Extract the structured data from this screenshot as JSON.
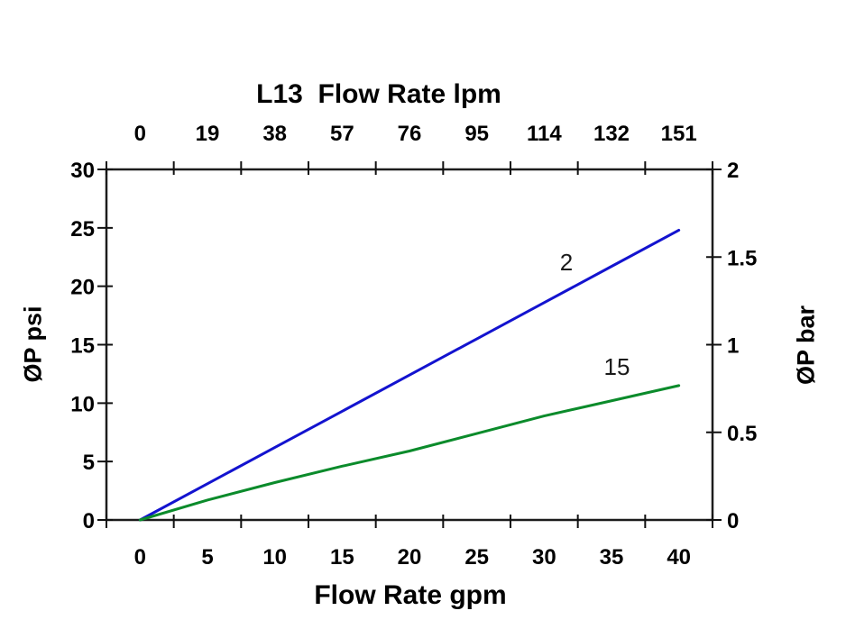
{
  "chart_data": {
    "type": "line",
    "top_axis": {
      "title": "L13  Flow Rate lpm",
      "tick_labels": [
        "0",
        "19",
        "38",
        "57",
        "76",
        "95",
        "114",
        "132",
        "151"
      ]
    },
    "bottom_axis": {
      "title": "Flow Rate gpm",
      "tick_labels": [
        "0",
        "5",
        "10",
        "15",
        "20",
        "25",
        "30",
        "35",
        "40"
      ],
      "values_gpm": [
        0,
        5,
        10,
        15,
        20,
        25,
        30,
        35,
        40
      ]
    },
    "left_axis": {
      "title": "ØP psi",
      "tick_labels": [
        "0",
        "5",
        "10",
        "15",
        "20",
        "25",
        "30"
      ],
      "tick_values": [
        0,
        5,
        10,
        15,
        20,
        25,
        30
      ],
      "range": [
        0,
        30
      ]
    },
    "right_axis": {
      "title": "ØP bar",
      "tick_labels": [
        "0",
        "0.5",
        "1",
        "1.5",
        "2"
      ],
      "tick_values": [
        0,
        0.5,
        1,
        1.5,
        2
      ],
      "range": [
        0,
        2
      ]
    },
    "grid": false,
    "legend": "inline curve labels",
    "series": [
      {
        "name": "2",
        "color": "#1313CF",
        "values_psi": [
          0,
          3.1,
          6.2,
          9.3,
          12.4,
          15.5,
          18.6,
          21.7,
          24.8
        ]
      },
      {
        "name": "15",
        "color": "#0B8B2B",
        "values_psi": [
          0,
          1.7,
          3.2,
          4.6,
          5.9,
          7.4,
          8.9,
          10.2,
          11.5
        ]
      }
    ]
  },
  "colors": {
    "axis_frame": "#1c1c1c",
    "tick": "#111111",
    "background": "#ffffff",
    "blue_series": "#1313CF",
    "green_series": "#0B8B2B"
  }
}
